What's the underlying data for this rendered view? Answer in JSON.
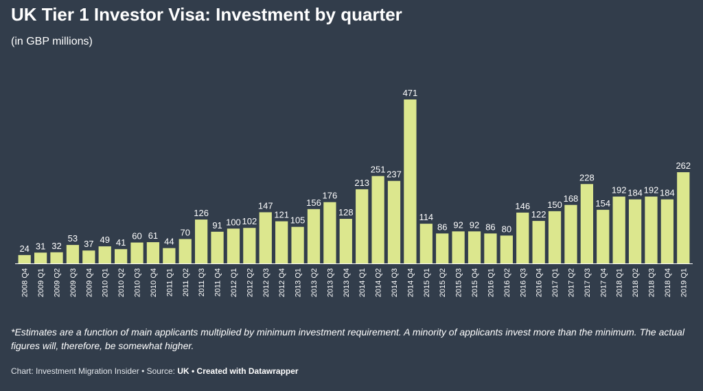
{
  "title": "UK Tier 1 Investor Visa: Investment by quarter",
  "subtitle": "(in GBP millions)",
  "footnote": "*Estimates are a function of main applicants multiplied by minimum investment requirement. A minority of applicants invest more than the minimum. The actual figures will, therefore, be somewhat higher.",
  "credits": {
    "prefix": "Chart: Investment Migration Insider • Source: ",
    "source": "UK",
    "separator": " • ",
    "made_with": "Created with Datawrapper"
  },
  "colors": {
    "background": "#323d4b",
    "bar": "#dce78e",
    "axis": "#ffffff"
  },
  "chart_data": {
    "type": "bar",
    "categories": [
      "2008 Q4",
      "2009 Q1",
      "2009 Q2",
      "2009 Q3",
      "2009 Q4",
      "2010 Q1",
      "2010 Q2",
      "2010 Q3",
      "2010 Q4",
      "2011 Q1",
      "2011 Q2",
      "2011 Q3",
      "2011 Q4",
      "2012 Q1",
      "2012 Q2",
      "2012 Q3",
      "2012 Q4",
      "2013 Q1",
      "2013 Q2",
      "2013 Q3",
      "2013 Q4",
      "2014 Q1",
      "2014 Q2",
      "2014 Q3",
      "2014 Q4",
      "2015 Q1",
      "2015 Q2",
      "2015 Q3",
      "2015 Q4",
      "2016 Q1",
      "2016 Q2",
      "2016 Q3",
      "2016 Q4",
      "2017 Q1",
      "2017 Q2",
      "2017 Q3",
      "2017 Q4",
      "2018 Q1",
      "2018 Q2",
      "2018 Q3",
      "2018 Q4",
      "2019 Q1"
    ],
    "values": [
      24,
      31,
      32,
      53,
      37,
      49,
      41,
      60,
      61,
      44,
      70,
      126,
      91,
      100,
      102,
      147,
      121,
      105,
      156,
      176,
      128,
      213,
      251,
      237,
      471,
      114,
      86,
      92,
      92,
      86,
      80,
      146,
      122,
      150,
      168,
      228,
      154,
      192,
      184,
      192,
      184,
      262
    ],
    "ylim": [
      0,
      471
    ],
    "grid": false,
    "data_labels": true
  }
}
